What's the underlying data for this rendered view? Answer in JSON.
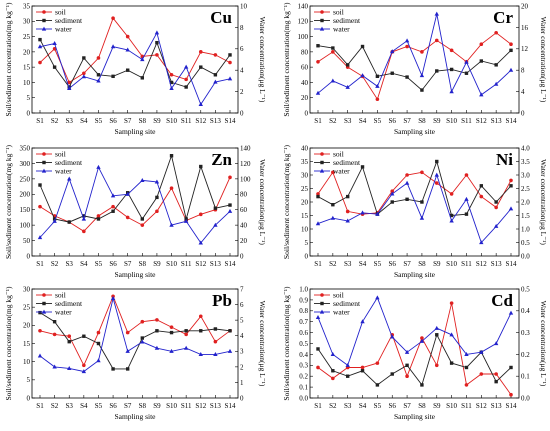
{
  "chart_data": [
    {
      "type": "line",
      "title": "Cu",
      "categories": [
        "S1",
        "S2",
        "S3",
        "S4",
        "S5",
        "S6",
        "S7",
        "S8",
        "S9",
        "S10",
        "S11",
        "S12",
        "S13",
        "S14"
      ],
      "xlabel": "Sampling site",
      "ylabel_left": "Soil/sediment concentration(mg kg⁻¹)",
      "ylabel_right": "Water concentration(μg L⁻¹)",
      "ylim_left": [
        0,
        35
      ],
      "yticks_left": [
        0,
        5,
        10,
        15,
        20,
        25,
        30,
        35
      ],
      "ylim_right": [
        0,
        10
      ],
      "yticks_right": [
        0,
        2,
        4,
        6,
        8,
        10
      ],
      "legend_position": "top-left",
      "series": [
        {
          "name": "soil",
          "axis": "left",
          "color": "#e02020",
          "marker": "circle",
          "values": [
            16.5,
            21,
            10,
            13,
            18,
            31,
            25,
            18.5,
            19,
            12.5,
            11,
            20,
            19,
            16.5
          ]
        },
        {
          "name": "sediment",
          "axis": "left",
          "color": "#222222",
          "marker": "square",
          "values": [
            24,
            15,
            8.5,
            18,
            12.5,
            12,
            14,
            11.5,
            23,
            10,
            8.5,
            15,
            12.5,
            19
          ]
        },
        {
          "name": "water",
          "axis": "right",
          "color": "#2222cc",
          "marker": "triangle",
          "values": [
            6.2,
            6.5,
            2.3,
            3.4,
            3.0,
            6.2,
            5.9,
            5.0,
            7.5,
            2.3,
            4.3,
            0.8,
            2.9,
            3.2
          ]
        }
      ]
    },
    {
      "type": "line",
      "title": "Cr",
      "categories": [
        "S1",
        "S2",
        "S3",
        "S4",
        "S5",
        "S6",
        "S7",
        "S8",
        "S9",
        "S10",
        "S11",
        "S12",
        "S13",
        "S14"
      ],
      "xlabel": "Sampling site",
      "ylabel_left": "Soil/sediment concentration(mg kg⁻¹)",
      "ylabel_right": "Water concentration(μg L⁻¹)",
      "ylim_left": [
        0,
        140
      ],
      "yticks_left": [
        0,
        20,
        40,
        60,
        80,
        100,
        120,
        140
      ],
      "ylim_right": [
        0,
        20
      ],
      "yticks_right": [
        0,
        4,
        8,
        12,
        16,
        20
      ],
      "legend_position": "top-left",
      "series": [
        {
          "name": "soil",
          "axis": "left",
          "color": "#e02020",
          "marker": "circle",
          "values": [
            67,
            80,
            60,
            48,
            18,
            80,
            87,
            80,
            95,
            82,
            67,
            90,
            105,
            90
          ]
        },
        {
          "name": "sediment",
          "axis": "left",
          "color": "#222222",
          "marker": "square",
          "values": [
            88,
            85,
            63,
            87,
            48,
            52,
            47,
            30,
            55,
            57,
            52,
            68,
            63,
            82
          ]
        },
        {
          "name": "water",
          "axis": "right",
          "color": "#2222cc",
          "marker": "triangle",
          "values": [
            3.7,
            6.0,
            4.8,
            7.0,
            5.0,
            11.5,
            13.5,
            7.0,
            18.5,
            4.0,
            9.5,
            3.4,
            5.4,
            8.0
          ]
        }
      ]
    },
    {
      "type": "line",
      "title": "Zn",
      "categories": [
        "S1",
        "S2",
        "S3",
        "S4",
        "S5",
        "S6",
        "S7",
        "S8",
        "S9",
        "S10",
        "S11",
        "S12",
        "S13",
        "S14"
      ],
      "xlabel": "Sampling site",
      "ylabel_left": "Soil/sediment concentration(mg kg⁻¹)",
      "ylabel_right": "Water concentration(μg L⁻¹)",
      "ylim_left": [
        0,
        350
      ],
      "yticks_left": [
        0,
        50,
        100,
        150,
        200,
        250,
        300,
        350
      ],
      "ylim_right": [
        0,
        140
      ],
      "yticks_right": [
        0,
        20,
        40,
        60,
        80,
        100,
        120,
        140
      ],
      "legend_position": "top-left",
      "series": [
        {
          "name": "soil",
          "axis": "left",
          "color": "#e02020",
          "marker": "circle",
          "values": [
            160,
            130,
            110,
            80,
            130,
            160,
            125,
            100,
            145,
            220,
            115,
            135,
            150,
            255
          ]
        },
        {
          "name": "sediment",
          "axis": "left",
          "color": "#222222",
          "marker": "square",
          "values": [
            230,
            120,
            110,
            130,
            120,
            145,
            205,
            120,
            190,
            325,
            120,
            290,
            155,
            165
          ]
        },
        {
          "name": "water",
          "axis": "right",
          "color": "#2222cc",
          "marker": "triangle",
          "values": [
            24,
            45,
            100,
            48,
            115,
            78,
            80,
            98,
            96,
            40,
            45,
            17,
            40,
            58
          ]
        }
      ]
    },
    {
      "type": "line",
      "title": "Ni",
      "categories": [
        "S1",
        "S2",
        "S3",
        "S4",
        "S5",
        "S6",
        "S7",
        "S8",
        "S9",
        "S10",
        "S11",
        "S12",
        "S13",
        "S14"
      ],
      "xlabel": "Sampling site",
      "ylabel_left": "Soil/sediment concentration(mg kg⁻¹)",
      "ylabel_right": "Water concentration(μg L⁻¹)",
      "ylim_left": [
        0,
        40
      ],
      "yticks_left": [
        0,
        5,
        10,
        15,
        20,
        25,
        30,
        35,
        40
      ],
      "ylim_right": [
        0,
        4.0
      ],
      "yticks_right": [
        0,
        0.5,
        1.0,
        1.5,
        2.0,
        2.5,
        3.0,
        3.5,
        4.0
      ],
      "legend_position": "top-left",
      "series": [
        {
          "name": "soil",
          "axis": "left",
          "color": "#e02020",
          "marker": "circle",
          "values": [
            23,
            31,
            16.5,
            15.5,
            16,
            24,
            30,
            31,
            27,
            23,
            30,
            22,
            18,
            28
          ]
        },
        {
          "name": "sediment",
          "axis": "left",
          "color": "#222222",
          "marker": "square",
          "values": [
            22,
            19,
            22,
            33,
            15.5,
            20,
            21,
            20,
            35,
            15,
            15.5,
            26,
            20,
            26
          ]
        },
        {
          "name": "water",
          "axis": "right",
          "color": "#2222cc",
          "marker": "triangle",
          "values": [
            1.2,
            1.4,
            1.3,
            1.6,
            1.55,
            2.3,
            2.7,
            1.4,
            3.0,
            1.3,
            2.1,
            0.5,
            1.1,
            1.75
          ]
        }
      ]
    },
    {
      "type": "line",
      "title": "Pb",
      "categories": [
        "S1",
        "S2",
        "S3",
        "S4",
        "S5",
        "S6",
        "S7",
        "S8",
        "S9",
        "S10",
        "S11",
        "S12",
        "S13",
        "S14"
      ],
      "xlabel": "Sampling site",
      "ylabel_left": "Soil/sediment concentration(mg kg⁻¹)",
      "ylabel_right": "Water concentration(μg L⁻¹)",
      "ylim_left": [
        0,
        30
      ],
      "yticks_left": [
        0,
        5,
        10,
        15,
        20,
        25,
        30
      ],
      "ylim_right": [
        0,
        7
      ],
      "yticks_right": [
        0,
        1,
        2,
        3,
        4,
        5,
        6,
        7
      ],
      "legend_position": "top-left",
      "series": [
        {
          "name": "soil",
          "axis": "left",
          "color": "#e02020",
          "marker": "circle",
          "values": [
            18.5,
            17.5,
            17,
            9,
            18,
            28,
            18,
            21,
            21.5,
            19.5,
            17.5,
            22.5,
            15.5,
            18.5
          ]
        },
        {
          "name": "sediment",
          "axis": "left",
          "color": "#222222",
          "marker": "square",
          "values": [
            23.5,
            21,
            15.5,
            17,
            15,
            8,
            8,
            16.5,
            18.5,
            18,
            18.5,
            18.5,
            19,
            18.5
          ]
        },
        {
          "name": "water",
          "axis": "right",
          "color": "#2222cc",
          "marker": "triangle",
          "values": [
            2.7,
            2.0,
            1.9,
            1.7,
            2.4,
            6.4,
            3.0,
            3.6,
            3.2,
            3.0,
            3.2,
            2.8,
            2.8,
            3.0
          ]
        }
      ]
    },
    {
      "type": "line",
      "title": "Cd",
      "categories": [
        "S1",
        "S2",
        "S3",
        "S4",
        "S5",
        "S6",
        "S7",
        "S8",
        "S9",
        "S10",
        "S11",
        "S12",
        "S13",
        "S14"
      ],
      "xlabel": "Sampling site",
      "ylabel_left": "Soil/sediment concentration(mg kg⁻¹)",
      "ylabel_right": "Water concentration(μg L⁻¹)",
      "ylim_left": [
        0,
        1.0
      ],
      "yticks_left": [
        0,
        0.1,
        0.2,
        0.3,
        0.4,
        0.5,
        0.6,
        0.7,
        0.8,
        0.9,
        1.0
      ],
      "ylim_right": [
        0,
        0.5
      ],
      "yticks_right": [
        0,
        0.1,
        0.2,
        0.3,
        0.4,
        0.5
      ],
      "legend_position": "top-left",
      "series": [
        {
          "name": "soil",
          "axis": "left",
          "color": "#e02020",
          "marker": "circle",
          "values": [
            0.28,
            0.18,
            0.28,
            0.28,
            0.32,
            0.58,
            0.2,
            0.55,
            0.3,
            0.87,
            0.12,
            0.22,
            0.22,
            0.03
          ]
        },
        {
          "name": "sediment",
          "axis": "left",
          "color": "#222222",
          "marker": "square",
          "values": [
            0.45,
            0.25,
            0.2,
            0.25,
            0.12,
            0.22,
            0.3,
            0.12,
            0.58,
            0.32,
            0.28,
            0.42,
            0.15,
            0.28
          ]
        },
        {
          "name": "water",
          "axis": "right",
          "color": "#2222cc",
          "marker": "triangle",
          "values": [
            0.37,
            0.2,
            0.15,
            0.35,
            0.46,
            0.28,
            0.21,
            0.26,
            0.32,
            0.29,
            0.2,
            0.21,
            0.25,
            0.39
          ]
        }
      ]
    }
  ]
}
